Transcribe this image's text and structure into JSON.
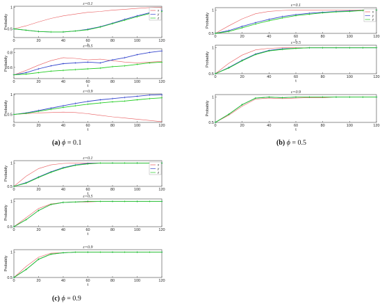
{
  "captions": [
    {
      "label": "(a)",
      "symbol": "ϕ",
      "value": "= 0.1"
    },
    {
      "label": "(b)",
      "symbol": "ϕ",
      "value": "= 0.5"
    },
    {
      "label": "(c)",
      "symbol": "ϕ",
      "value": "= 0.9"
    }
  ],
  "colors": {
    "x": "#e8585a",
    "y": "#3344cc",
    "z": "#22cc22",
    "frame": "#444444"
  },
  "chart_data": [
    {
      "type": "line",
      "group": "a",
      "title": "ε=0.1",
      "xlabel": "t",
      "ylabel": "Probabily",
      "xlim": [
        0,
        120
      ],
      "ylim": [
        0.3,
        1.02
      ],
      "xticks": [
        0,
        20,
        40,
        60,
        80,
        100,
        120
      ],
      "yticks": [
        0.5,
        1
      ],
      "legend": "top-right",
      "x": [
        0,
        10,
        20,
        30,
        40,
        50,
        60,
        70,
        80,
        90,
        100,
        110,
        120
      ],
      "series": [
        {
          "name": "x",
          "values": [
            0.5,
            0.57,
            0.66,
            0.74,
            0.8,
            0.84,
            0.88,
            0.9,
            0.93,
            0.95,
            0.97,
            0.99,
            1.0
          ]
        },
        {
          "name": "y",
          "values": [
            0.5,
            0.47,
            0.44,
            0.43,
            0.43,
            0.45,
            0.49,
            0.55,
            0.63,
            0.72,
            0.8,
            0.87,
            0.92
          ]
        },
        {
          "name": "z",
          "values": [
            0.5,
            0.47,
            0.44,
            0.43,
            0.43,
            0.45,
            0.48,
            0.54,
            0.62,
            0.7,
            0.78,
            0.85,
            0.9
          ]
        }
      ]
    },
    {
      "type": "line",
      "group": "a",
      "title": "ε=0.5",
      "xlabel": "t",
      "ylabel": "Probabily",
      "xlim": [
        0,
        120
      ],
      "ylim": [
        0.45,
        0.85
      ],
      "xticks": [
        0,
        20,
        40,
        60,
        80,
        100,
        120
      ],
      "yticks": [
        0.6,
        0.8
      ],
      "x": [
        0,
        10,
        20,
        30,
        40,
        50,
        60,
        70,
        80,
        90,
        100,
        110,
        120
      ],
      "series": [
        {
          "name": "x",
          "values": [
            0.5,
            0.56,
            0.63,
            0.69,
            0.73,
            0.72,
            0.7,
            0.71,
            0.69,
            0.67,
            0.66,
            0.67,
            0.68
          ]
        },
        {
          "name": "y",
          "values": [
            0.5,
            0.53,
            0.58,
            0.62,
            0.65,
            0.66,
            0.67,
            0.66,
            0.7,
            0.73,
            0.77,
            0.8,
            0.82
          ]
        },
        {
          "name": "z",
          "values": [
            0.5,
            0.51,
            0.53,
            0.55,
            0.56,
            0.57,
            0.58,
            0.59,
            0.61,
            0.62,
            0.64,
            0.66,
            0.67
          ]
        }
      ]
    },
    {
      "type": "line",
      "group": "a",
      "title": "ε=0.9",
      "xlabel": "t",
      "ylabel": "Probabily",
      "xlim": [
        0,
        120
      ],
      "ylim": [
        0.3,
        1.02
      ],
      "xticks": [
        0,
        20,
        40,
        60,
        80,
        100,
        120
      ],
      "yticks": [
        0.5,
        1
      ],
      "x": [
        0,
        10,
        20,
        30,
        40,
        50,
        60,
        70,
        80,
        90,
        100,
        110,
        120
      ],
      "series": [
        {
          "name": "x",
          "values": [
            0.5,
            0.52,
            0.54,
            0.55,
            0.56,
            0.55,
            0.52,
            0.48,
            0.44,
            0.41,
            0.38,
            0.35,
            0.32
          ]
        },
        {
          "name": "y",
          "values": [
            0.5,
            0.54,
            0.6,
            0.66,
            0.72,
            0.78,
            0.83,
            0.87,
            0.9,
            0.93,
            0.96,
            0.99,
            1.0
          ]
        },
        {
          "name": "z",
          "values": [
            0.5,
            0.53,
            0.58,
            0.63,
            0.68,
            0.72,
            0.76,
            0.79,
            0.82,
            0.84,
            0.87,
            0.9,
            0.92
          ]
        }
      ]
    },
    {
      "type": "line",
      "group": "b",
      "title": "ε=0.1",
      "xlabel": "t",
      "ylabel": "Probabily",
      "xlim": [
        0,
        120
      ],
      "ylim": [
        0.5,
        1.05
      ],
      "xticks": [
        0,
        20,
        40,
        60,
        80,
        100,
        120
      ],
      "yticks": [
        0.5,
        1
      ],
      "legend": "top-right",
      "x": [
        0,
        10,
        20,
        30,
        40,
        50,
        60,
        70,
        80,
        90,
        100,
        110,
        120
      ],
      "series": [
        {
          "name": "x",
          "values": [
            0.5,
            0.66,
            0.81,
            0.92,
            0.97,
            0.99,
            1.0,
            1.0,
            1.0,
            1.0,
            1.0,
            1.0,
            1.0
          ]
        },
        {
          "name": "y",
          "values": [
            0.5,
            0.56,
            0.65,
            0.73,
            0.8,
            0.86,
            0.9,
            0.93,
            0.95,
            0.97,
            0.98,
            0.99,
            1.0
          ]
        },
        {
          "name": "z",
          "values": [
            0.5,
            0.54,
            0.62,
            0.7,
            0.77,
            0.83,
            0.88,
            0.91,
            0.94,
            0.96,
            0.97,
            0.99,
            1.0
          ]
        }
      ]
    },
    {
      "type": "line",
      "group": "b",
      "title": "ε=0.5",
      "xlabel": "t",
      "ylabel": "Probabily",
      "xlim": [
        0,
        120
      ],
      "ylim": [
        0.5,
        1.05
      ],
      "xticks": [
        0,
        20,
        40,
        60,
        80,
        100,
        120
      ],
      "yticks": [
        0.5,
        1
      ],
      "x": [
        0,
        10,
        20,
        30,
        40,
        50,
        60,
        70,
        80,
        90,
        100,
        110,
        120
      ],
      "series": [
        {
          "name": "x",
          "values": [
            0.5,
            0.7,
            0.86,
            0.96,
            0.99,
            1.0,
            1.0,
            1.0,
            1.0,
            1.0,
            1.0,
            1.0,
            1.0
          ]
        },
        {
          "name": "y",
          "values": [
            0.5,
            0.62,
            0.76,
            0.88,
            0.95,
            0.98,
            0.99,
            1.0,
            1.0,
            1.0,
            1.0,
            1.0,
            1.0
          ]
        },
        {
          "name": "z",
          "values": [
            0.5,
            0.61,
            0.75,
            0.87,
            0.94,
            0.97,
            0.99,
            1.0,
            1.0,
            1.0,
            1.0,
            1.0,
            1.0
          ]
        }
      ]
    },
    {
      "type": "line",
      "group": "b",
      "title": "ε=0.9",
      "xlabel": "t",
      "ylabel": "Probabily",
      "xlim": [
        0,
        120
      ],
      "ylim": [
        0.5,
        1.05
      ],
      "xticks": [
        0,
        20,
        40,
        60,
        80,
        100,
        120
      ],
      "yticks": [
        0.5,
        1
      ],
      "x": [
        0,
        10,
        20,
        30,
        40,
        50,
        60,
        70,
        80,
        90,
        100,
        110,
        120
      ],
      "series": [
        {
          "name": "x",
          "values": [
            0.5,
            0.64,
            0.82,
            0.96,
            0.98,
            0.97,
            0.98,
            0.99,
            0.99,
            1.0,
            1.0,
            1.0,
            1.0
          ]
        },
        {
          "name": "y",
          "values": [
            0.5,
            0.66,
            0.85,
            0.98,
            1.0,
            0.99,
            1.0,
            1.0,
            1.0,
            1.0,
            1.0,
            1.0,
            1.0
          ]
        },
        {
          "name": "z",
          "values": [
            0.5,
            0.66,
            0.85,
            0.98,
            1.0,
            0.99,
            1.0,
            1.0,
            1.0,
            1.0,
            1.0,
            1.0,
            1.0
          ]
        }
      ]
    },
    {
      "type": "line",
      "group": "c",
      "title": "ε=0.1",
      "xlabel": "t",
      "ylabel": "Probabily",
      "xlim": [
        0,
        120
      ],
      "ylim": [
        0.5,
        1.05
      ],
      "xticks": [
        0,
        20,
        40,
        60,
        80,
        100,
        120
      ],
      "yticks": [
        0.5,
        1
      ],
      "legend": "top-right",
      "x": [
        0,
        10,
        20,
        30,
        40,
        50,
        60,
        70,
        80,
        90,
        100,
        110,
        120
      ],
      "series": [
        {
          "name": "x",
          "values": [
            0.5,
            0.72,
            0.88,
            0.96,
            0.99,
            1.0,
            1.0,
            1.0,
            1.0,
            1.0,
            1.0,
            1.0,
            1.0
          ]
        },
        {
          "name": "y",
          "values": [
            0.5,
            0.58,
            0.7,
            0.81,
            0.9,
            0.96,
            0.99,
            1.0,
            1.0,
            1.0,
            1.0,
            1.0,
            1.0
          ]
        },
        {
          "name": "z",
          "values": [
            0.5,
            0.57,
            0.69,
            0.8,
            0.89,
            0.95,
            0.98,
            1.0,
            1.0,
            1.0,
            1.0,
            1.0,
            1.0
          ]
        }
      ]
    },
    {
      "type": "line",
      "group": "c",
      "title": "ε=0.5",
      "xlabel": "t",
      "ylabel": "Probabily",
      "xlim": [
        0,
        120
      ],
      "ylim": [
        0.5,
        1.05
      ],
      "xticks": [
        0,
        20,
        40,
        60,
        80,
        100,
        120
      ],
      "yticks": [
        0.5,
        1
      ],
      "x": [
        0,
        10,
        20,
        30,
        40,
        50,
        60,
        70,
        80,
        90,
        100,
        110,
        120
      ],
      "series": [
        {
          "name": "x",
          "values": [
            0.5,
            0.68,
            0.86,
            0.95,
            0.98,
            0.99,
            0.99,
            1.0,
            1.0,
            1.0,
            1.0,
            1.0,
            1.0
          ]
        },
        {
          "name": "y",
          "values": [
            0.5,
            0.64,
            0.82,
            0.94,
            0.98,
            0.99,
            1.0,
            1.0,
            1.0,
            1.0,
            1.0,
            1.0,
            1.0
          ]
        },
        {
          "name": "z",
          "values": [
            0.5,
            0.64,
            0.82,
            0.94,
            0.98,
            0.99,
            1.0,
            1.0,
            1.0,
            1.0,
            1.0,
            1.0,
            1.0
          ]
        }
      ]
    },
    {
      "type": "line",
      "group": "c",
      "title": "ε=0.9",
      "xlabel": "t",
      "ylabel": "Probabily",
      "xlim": [
        0,
        120
      ],
      "ylim": [
        0.5,
        1.05
      ],
      "xticks": [
        0,
        20,
        40,
        60,
        80,
        100,
        120
      ],
      "yticks": [
        0.5,
        1
      ],
      "x": [
        0,
        10,
        20,
        30,
        40,
        50,
        60,
        70,
        80,
        90,
        100,
        110,
        120
      ],
      "series": [
        {
          "name": "x",
          "values": [
            0.5,
            0.72,
            0.9,
            0.98,
            0.99,
            1.0,
            1.0,
            1.0,
            1.0,
            1.0,
            1.0,
            1.0,
            1.0
          ]
        },
        {
          "name": "y",
          "values": [
            0.5,
            0.66,
            0.86,
            0.96,
            0.99,
            1.0,
            1.0,
            1.0,
            1.0,
            1.0,
            1.0,
            1.0,
            1.0
          ]
        },
        {
          "name": "z",
          "values": [
            0.5,
            0.66,
            0.86,
            0.96,
            0.99,
            1.0,
            1.0,
            1.0,
            1.0,
            1.0,
            1.0,
            1.0,
            1.0
          ]
        }
      ]
    }
  ]
}
